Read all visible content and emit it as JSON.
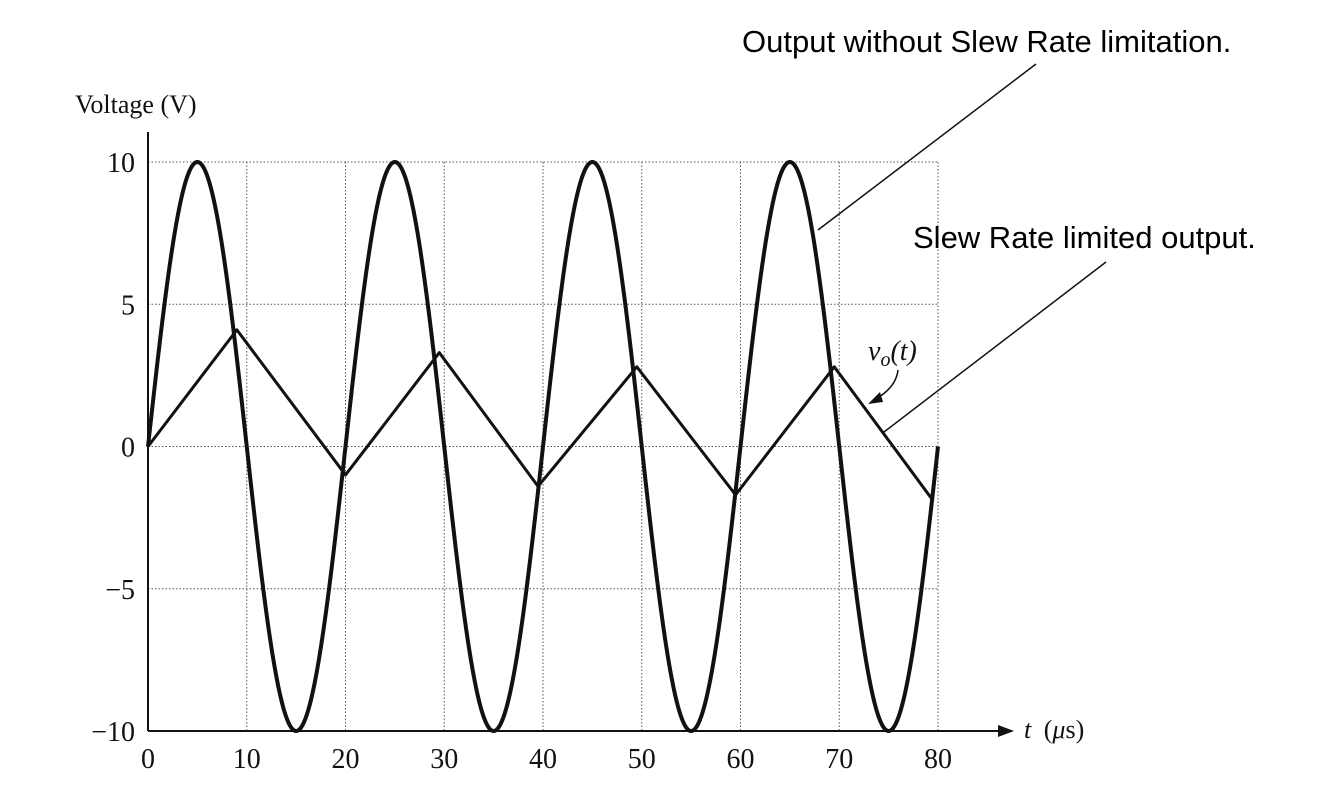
{
  "chart_data": {
    "type": "line",
    "ylabel": "Voltage (V)",
    "xlabel": "t (μs)",
    "xlabel_prefix": "t",
    "xlabel_unit_open": "(",
    "xlabel_unit_mu": "μ",
    "xlabel_unit_rest": "s)",
    "xlim": [
      0,
      80
    ],
    "ylim": [
      -10,
      10
    ],
    "x_ticks": [
      "0",
      "10",
      "20",
      "30",
      "40",
      "50",
      "60",
      "70",
      "80"
    ],
    "y_ticks": [
      "10",
      "5",
      "0",
      "−5",
      "−10"
    ],
    "grid": true,
    "series": [
      {
        "name": "Output without Slew Rate limitation.",
        "type": "sine",
        "amplitude": 10,
        "period_us": 20,
        "x_range": [
          0,
          80
        ]
      },
      {
        "name": "Slew Rate limited output.",
        "x": [
          0,
          9,
          20,
          29.5,
          39.5,
          49.5,
          59.5,
          69.5,
          79.5
        ],
        "y": [
          0,
          4.1,
          -1.0,
          3.3,
          -1.4,
          2.8,
          -1.7,
          2.8,
          -1.9
        ]
      }
    ],
    "annotations": {
      "sine_label": "Output without Slew Rate limitation.",
      "slew_label": "Slew Rate limited output.",
      "vo_v": "v",
      "vo_sub": "o",
      "vo_arg": "(t)"
    }
  }
}
